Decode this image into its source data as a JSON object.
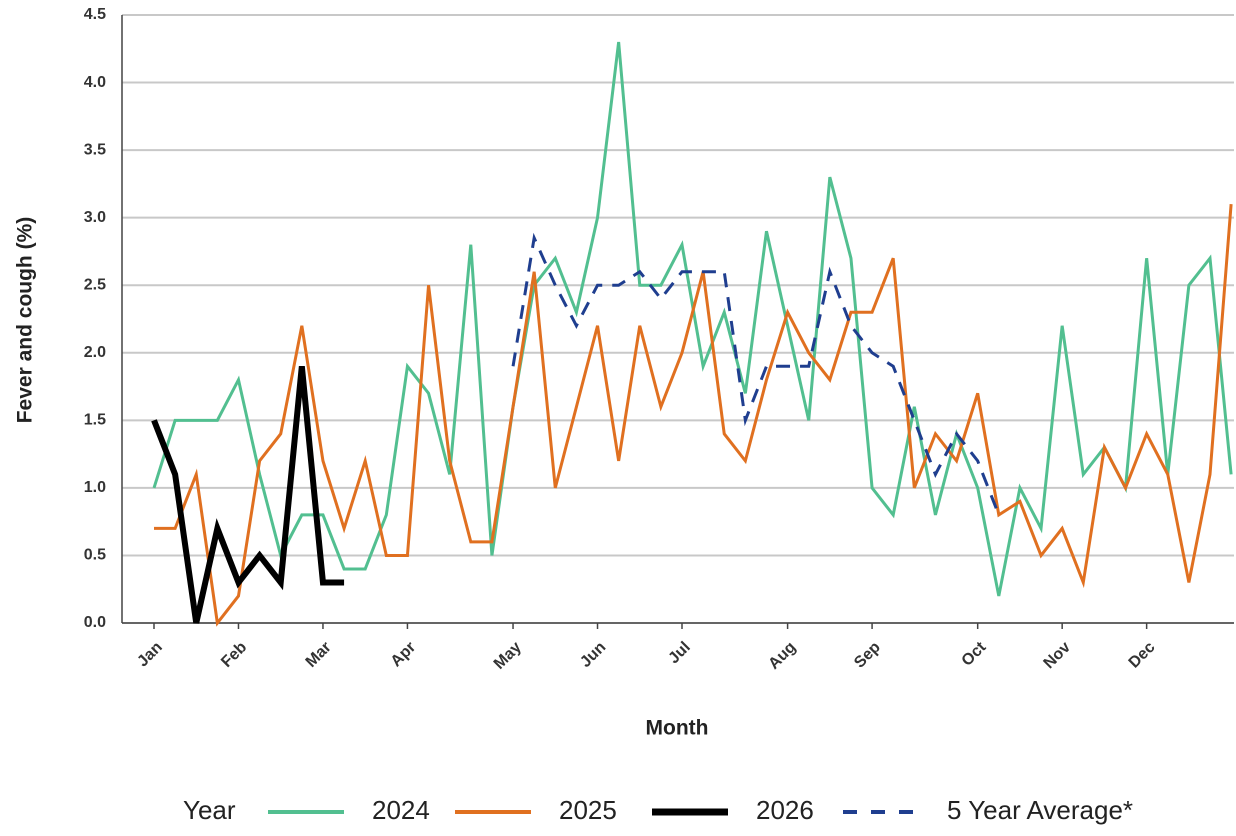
{
  "chart_data": {
    "type": "line",
    "y_label": "Fever and cough (%)",
    "x_label": "Month",
    "legend_title": "Year",
    "categories": [
      "Jan",
      null,
      null,
      null,
      "Feb",
      null,
      null,
      null,
      "Mar",
      null,
      null,
      null,
      "Apr",
      null,
      null,
      null,
      null,
      "May",
      null,
      null,
      null,
      "Jun",
      null,
      null,
      null,
      "Jul",
      null,
      null,
      null,
      null,
      "Aug",
      null,
      null,
      null,
      "Sep",
      null,
      null,
      null,
      null,
      "Oct",
      null,
      null,
      null,
      "Nov",
      null,
      null,
      null,
      "Dec",
      null,
      null,
      null,
      null
    ],
    "ylim": [
      0,
      4.5
    ],
    "yticks": [
      {
        "value": 0,
        "label": "0.0"
      },
      {
        "value": 0.5,
        "label": "0.5"
      },
      {
        "value": 1,
        "label": "1.0"
      },
      {
        "value": 1.5,
        "label": "1.5"
      },
      {
        "value": 2,
        "label": "2.0"
      },
      {
        "value": 2.5,
        "label": "2.5"
      },
      {
        "value": 3,
        "label": "3.0"
      },
      {
        "value": 3.5,
        "label": "3.5"
      },
      {
        "value": 4,
        "label": "4.0"
      },
      {
        "value": 4.5,
        "label": "4.5"
      }
    ],
    "grid": true,
    "series": [
      {
        "name": "2024",
        "color": "#52bf90",
        "width": 3,
        "dashed": false,
        "values": [
          1.0,
          1.5,
          1.5,
          1.5,
          1.8,
          1.1,
          0.5,
          0.8,
          0.8,
          0.4,
          0.4,
          0.8,
          1.9,
          1.7,
          1.1,
          2.8,
          0.5,
          1.6,
          2.5,
          2.7,
          2.3,
          3.0,
          4.3,
          2.5,
          2.5,
          2.8,
          1.9,
          2.3,
          1.7,
          2.9,
          2.2,
          1.5,
          3.3,
          2.7,
          1.0,
          0.8,
          1.6,
          0.8,
          1.4,
          1.0,
          0.2,
          1.0,
          0.7,
          2.2,
          1.1,
          1.3,
          1.0,
          2.7,
          1.1,
          2.5,
          2.7,
          1.1
        ]
      },
      {
        "name": "2025",
        "color": "#e07020",
        "width": 3,
        "dashed": false,
        "values": [
          0.7,
          0.7,
          1.1,
          0.0,
          0.2,
          1.2,
          1.4,
          2.2,
          1.2,
          0.7,
          1.2,
          0.5,
          0.5,
          2.5,
          1.2,
          0.6,
          0.6,
          1.6,
          2.6,
          1.0,
          1.6,
          2.2,
          1.2,
          2.2,
          1.6,
          2.0,
          2.6,
          1.4,
          1.2,
          1.8,
          2.3,
          2.0,
          1.8,
          2.3,
          2.3,
          2.7,
          1.0,
          1.4,
          1.2,
          1.7,
          0.8,
          0.9,
          0.5,
          0.7,
          0.3,
          1.3,
          1.0,
          1.4,
          1.1,
          0.3,
          1.1,
          3.1
        ]
      },
      {
        "name": "2026",
        "color": "#000000",
        "width": 6,
        "dashed": false,
        "values": [
          1.5,
          1.1,
          0.0,
          0.7,
          0.3,
          0.5,
          0.3,
          1.9,
          0.3,
          0.3,
          null,
          null,
          null,
          null,
          null,
          null,
          null,
          null,
          null,
          null,
          null,
          null,
          null,
          null,
          null,
          null,
          null,
          null,
          null,
          null,
          null,
          null,
          null,
          null,
          null,
          null,
          null,
          null,
          null,
          null,
          null,
          null,
          null,
          null,
          null,
          null,
          null,
          null,
          null,
          null,
          null,
          null
        ]
      },
      {
        "name": "5 Year Average*",
        "color": "#1f3e8f",
        "width": 3,
        "dashed": true,
        "values": [
          null,
          null,
          null,
          null,
          null,
          null,
          null,
          null,
          null,
          null,
          null,
          null,
          null,
          null,
          null,
          null,
          null,
          1.9,
          2.85,
          2.5,
          2.2,
          2.5,
          2.5,
          2.6,
          2.4,
          2.6,
          2.6,
          2.6,
          1.5,
          1.9,
          1.9,
          1.9,
          2.6,
          2.2,
          2.0,
          1.9,
          1.5,
          1.1,
          1.4,
          1.2,
          0.8,
          null,
          null,
          null,
          null,
          null,
          null,
          null,
          null,
          null,
          null,
          null
        ]
      }
    ]
  }
}
